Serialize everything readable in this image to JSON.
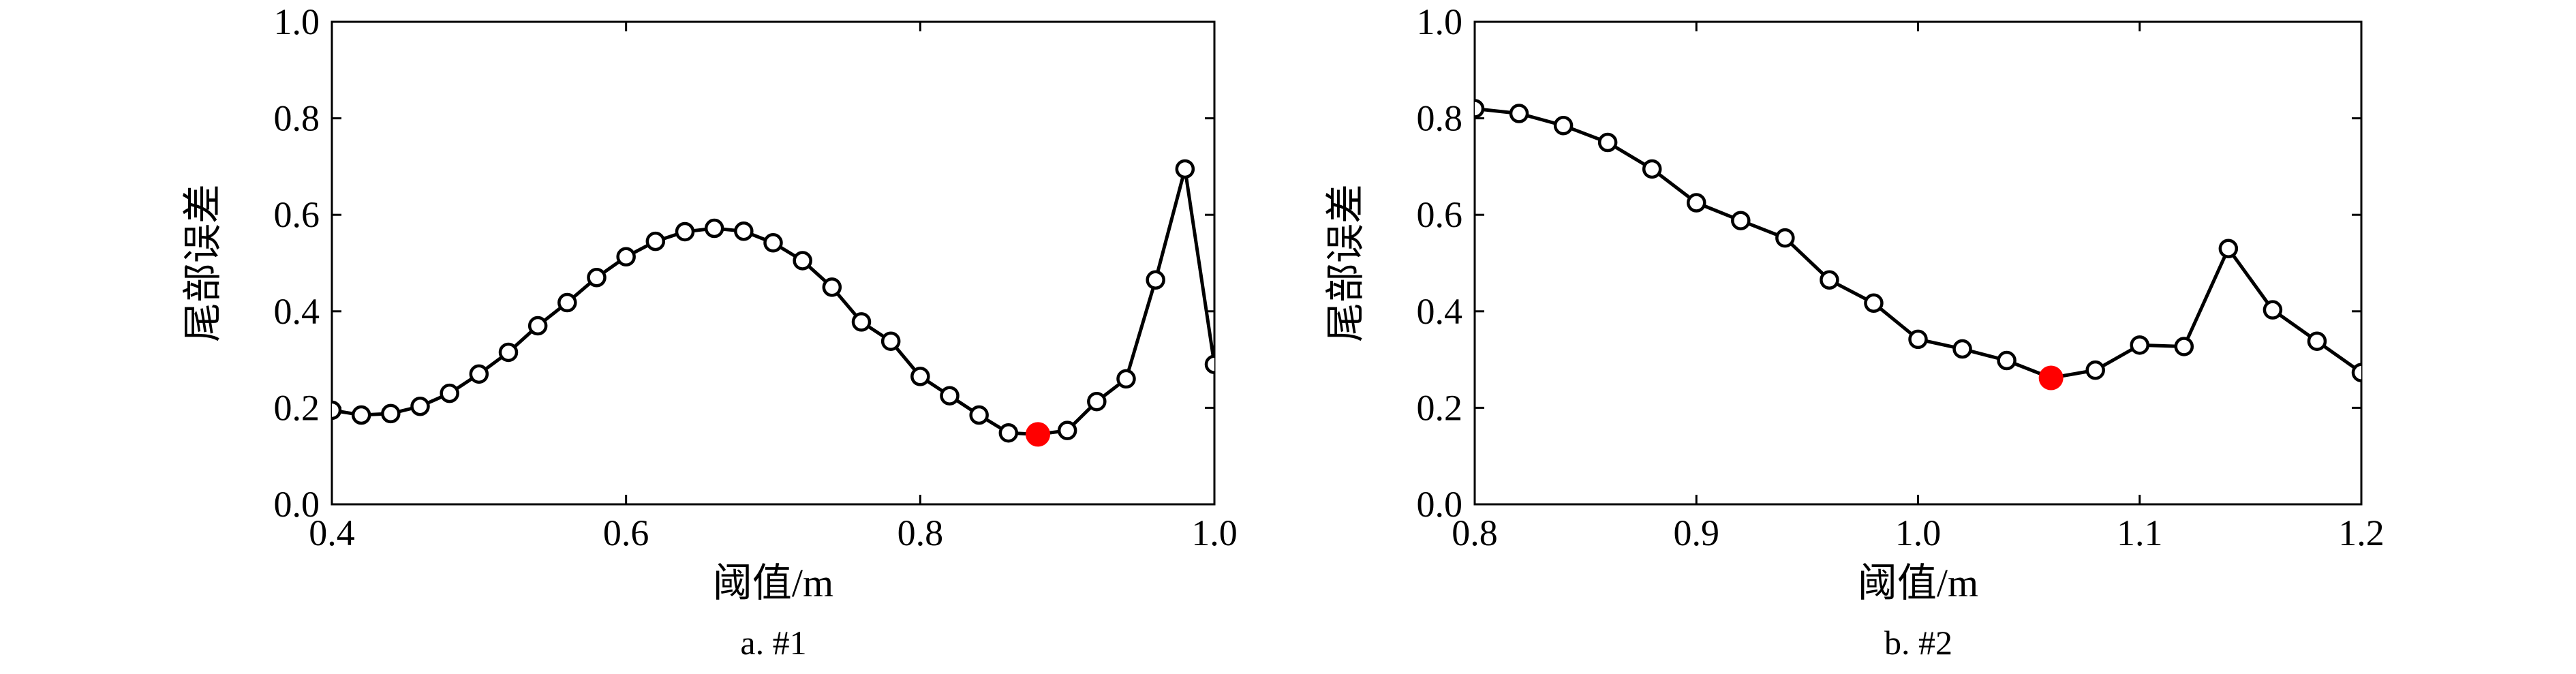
{
  "chart_data": [
    {
      "type": "line",
      "caption": "a. #1",
      "xlabel": "阈值/m",
      "ylabel": "尾部误差",
      "xlim": [
        0.4,
        1.0
      ],
      "ylim": [
        0.0,
        1.0
      ],
      "xticks": [
        "0.4",
        "0.6",
        "0.8",
        "1.0"
      ],
      "yticks": [
        "0.0",
        "0.2",
        "0.4",
        "0.6",
        "0.8",
        "1.0"
      ],
      "grid": false,
      "colors": {
        "line": "#000000",
        "marker_edge": "#000000",
        "highlight": "#ff0000"
      },
      "series": [
        {
          "x": [
            0.4,
            0.42,
            0.44,
            0.46,
            0.48,
            0.5,
            0.52,
            0.54,
            0.56,
            0.58,
            0.6,
            0.62,
            0.64,
            0.66,
            0.68,
            0.7,
            0.72,
            0.74,
            0.76,
            0.78,
            0.8,
            0.82,
            0.84,
            0.86,
            0.88,
            0.9,
            0.92,
            0.94,
            0.96,
            0.98,
            1.0
          ],
          "y": [
            0.195,
            0.185,
            0.188,
            0.203,
            0.23,
            0.27,
            0.315,
            0.37,
            0.418,
            0.47,
            0.513,
            0.545,
            0.565,
            0.572,
            0.566,
            0.542,
            0.505,
            0.45,
            0.378,
            0.338,
            0.265,
            0.225,
            0.185,
            0.148,
            0.145,
            0.153,
            0.213,
            0.26,
            0.465,
            0.695,
            0.29
          ]
        }
      ],
      "highlight": {
        "x": 0.88,
        "y": 0.145
      }
    },
    {
      "type": "line",
      "caption": "b. #2",
      "xlabel": "阈值/m",
      "ylabel": "尾部误差",
      "xlim": [
        0.8,
        1.2
      ],
      "ylim": [
        0.0,
        1.0
      ],
      "xticks": [
        "0.8",
        "0.9",
        "1.0",
        "1.1",
        "1.2"
      ],
      "yticks": [
        "0.0",
        "0.2",
        "0.4",
        "0.6",
        "0.8",
        "1.0"
      ],
      "grid": false,
      "colors": {
        "line": "#000000",
        "marker_edge": "#000000",
        "highlight": "#ff0000"
      },
      "series": [
        {
          "x": [
            0.8,
            0.82,
            0.84,
            0.86,
            0.88,
            0.9,
            0.92,
            0.94,
            0.96,
            0.98,
            1.0,
            1.02,
            1.04,
            1.06,
            1.08,
            1.1,
            1.12,
            1.14,
            1.16,
            1.18,
            1.2
          ],
          "y": [
            0.82,
            0.81,
            0.785,
            0.75,
            0.695,
            0.625,
            0.588,
            0.552,
            0.465,
            0.417,
            0.342,
            0.322,
            0.298,
            0.262,
            0.278,
            0.33,
            0.327,
            0.53,
            0.403,
            0.338,
            0.273
          ]
        }
      ],
      "highlight": {
        "x": 1.06,
        "y": 0.262
      }
    }
  ]
}
